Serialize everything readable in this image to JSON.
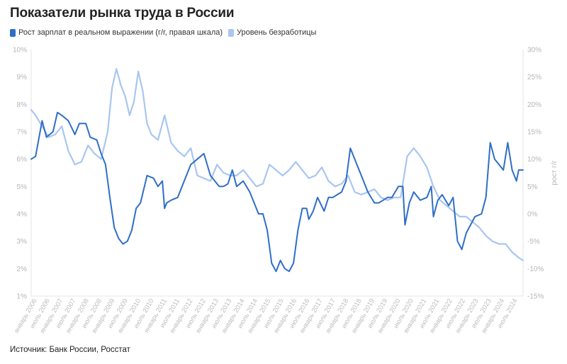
{
  "title": "Показатели рынка труда в России",
  "source": "Источник: Банк России, Росстат",
  "colors": {
    "wages": "#2f6ec7",
    "unemployment": "#a9c6f0",
    "grid": "#e3e3e3",
    "tick": "#b5b5b5"
  },
  "chart_data": {
    "type": "line",
    "title": "Показатели рынка труда в России",
    "ylim_left": [
      1,
      10
    ],
    "ylim_right": [
      -15,
      30
    ],
    "ylabel_left": "",
    "ylabel_right": "рост г/г",
    "left_ticks": [
      "1%",
      "2%",
      "3%",
      "4%",
      "5%",
      "6%",
      "7%",
      "8%",
      "9%",
      "10%"
    ],
    "right_ticks": [
      "-15%",
      "-10%",
      "-5%",
      "0%",
      "5%",
      "10%",
      "15%",
      "20%",
      "25%",
      "30%"
    ],
    "grid": false,
    "legend_position": "top-left",
    "x_range": [
      "2006-01",
      "2024-10"
    ],
    "x_tick_labels": [
      "январь 2006",
      "июль 2006",
      "январь 2007",
      "июль 2007",
      "январь 2008",
      "июль 2008",
      "январь 2009",
      "июль 2009",
      "январь 2010",
      "июль 2010",
      "январь 2011",
      "июль 2011",
      "январь 2012",
      "июль 2012",
      "январь 2013",
      "июль 2013",
      "январь 2014",
      "июль 2014",
      "январь 2015",
      "июль 2015",
      "январь 2016",
      "июль 2016",
      "январь 2017",
      "июль 2017",
      "январь 2018",
      "июль 2018",
      "январь 2019",
      "июль 2019",
      "январь 2020",
      "июль 2020",
      "январь 2021",
      "июль 2021",
      "январь 2022",
      "июль 2022",
      "январь 2023",
      "июль 2023",
      "январь 2024",
      "июль 2024"
    ],
    "series": [
      {
        "name": "Рост зарплат в реальном выражении (г/г, правая шкала)",
        "axis": "right",
        "color": "#2f6ec7",
        "points": [
          [
            "2006-01",
            10
          ],
          [
            "2006-03",
            10.5
          ],
          [
            "2006-06",
            17
          ],
          [
            "2006-08",
            14
          ],
          [
            "2006-11",
            15
          ],
          [
            "2007-01",
            18.5
          ],
          [
            "2007-03",
            18
          ],
          [
            "2007-06",
            17
          ],
          [
            "2007-09",
            14.5
          ],
          [
            "2007-11",
            16.5
          ],
          [
            "2008-02",
            16.5
          ],
          [
            "2008-04",
            14
          ],
          [
            "2008-07",
            13.5
          ],
          [
            "2008-09",
            11
          ],
          [
            "2008-11",
            9
          ],
          [
            "2009-01",
            3
          ],
          [
            "2009-03",
            -2.5
          ],
          [
            "2009-05",
            -4.5
          ],
          [
            "2009-07",
            -5.5
          ],
          [
            "2009-09",
            -5
          ],
          [
            "2009-11",
            -3
          ],
          [
            "2010-01",
            1
          ],
          [
            "2010-03",
            2
          ],
          [
            "2010-06",
            7
          ],
          [
            "2010-09",
            6.5
          ],
          [
            "2010-11",
            5
          ],
          [
            "2011-01",
            6
          ],
          [
            "2011-02",
            1
          ],
          [
            "2011-03",
            2
          ],
          [
            "2011-05",
            2.5
          ],
          [
            "2011-08",
            3
          ],
          [
            "2011-11",
            6
          ],
          [
            "2012-02",
            9
          ],
          [
            "2012-05",
            10
          ],
          [
            "2012-08",
            11
          ],
          [
            "2012-11",
            7
          ],
          [
            "2013-01",
            6
          ],
          [
            "2013-03",
            5
          ],
          [
            "2013-05",
            5
          ],
          [
            "2013-07",
            5.5
          ],
          [
            "2013-09",
            8
          ],
          [
            "2013-11",
            5
          ],
          [
            "2014-02",
            6
          ],
          [
            "2014-05",
            4
          ],
          [
            "2014-07",
            2
          ],
          [
            "2014-09",
            0
          ],
          [
            "2014-11",
            0
          ],
          [
            "2015-01",
            -3
          ],
          [
            "2015-03",
            -9
          ],
          [
            "2015-05",
            -10.5
          ],
          [
            "2015-07",
            -8.5
          ],
          [
            "2015-09",
            -10
          ],
          [
            "2015-11",
            -10.5
          ],
          [
            "2016-01",
            -9
          ],
          [
            "2016-03",
            -3
          ],
          [
            "2016-05",
            1
          ],
          [
            "2016-07",
            1
          ],
          [
            "2016-08",
            -1
          ],
          [
            "2016-10",
            0.5
          ],
          [
            "2016-12",
            3
          ],
          [
            "2017-03",
            0.5
          ],
          [
            "2017-05",
            3
          ],
          [
            "2017-07",
            3
          ],
          [
            "2017-09",
            3.5
          ],
          [
            "2017-11",
            4
          ],
          [
            "2018-01",
            6
          ],
          [
            "2018-03",
            12
          ],
          [
            "2018-05",
            10
          ],
          [
            "2018-08",
            7
          ],
          [
            "2018-11",
            4
          ],
          [
            "2019-02",
            2
          ],
          [
            "2019-04",
            2
          ],
          [
            "2019-06",
            2.5
          ],
          [
            "2019-08",
            3
          ],
          [
            "2019-10",
            3
          ],
          [
            "2020-01",
            5
          ],
          [
            "2020-03",
            5
          ],
          [
            "2020-04",
            -2
          ],
          [
            "2020-06",
            2
          ],
          [
            "2020-08",
            4
          ],
          [
            "2020-11",
            2.5
          ],
          [
            "2021-02",
            3
          ],
          [
            "2021-04",
            5
          ],
          [
            "2021-05",
            -0.5
          ],
          [
            "2021-07",
            2.5
          ],
          [
            "2021-09",
            3.5
          ],
          [
            "2021-12",
            1.5
          ],
          [
            "2022-02",
            3
          ],
          [
            "2022-04",
            -5
          ],
          [
            "2022-06",
            -6.5
          ],
          [
            "2022-08",
            -3.5
          ],
          [
            "2022-10",
            -2
          ],
          [
            "2022-12",
            -0.5
          ],
          [
            "2023-03",
            0
          ],
          [
            "2023-05",
            3
          ],
          [
            "2023-07",
            13
          ],
          [
            "2023-09",
            10
          ],
          [
            "2023-11",
            9
          ],
          [
            "2024-01",
            8
          ],
          [
            "2024-03",
            13
          ],
          [
            "2024-05",
            8
          ],
          [
            "2024-07",
            6
          ],
          [
            "2024-08",
            8
          ],
          [
            "2024-10",
            8
          ]
        ]
      },
      {
        "name": "Уровень безработицы",
        "axis": "left",
        "color": "#a9c6f0",
        "points": [
          [
            "2006-01",
            7.8
          ],
          [
            "2006-03",
            7.6
          ],
          [
            "2006-06",
            7.2
          ],
          [
            "2006-09",
            6.8
          ],
          [
            "2006-12",
            6.9
          ],
          [
            "2007-03",
            7.2
          ],
          [
            "2007-06",
            6.3
          ],
          [
            "2007-09",
            5.8
          ],
          [
            "2007-12",
            5.9
          ],
          [
            "2008-03",
            6.5
          ],
          [
            "2008-06",
            6.2
          ],
          [
            "2008-09",
            6.0
          ],
          [
            "2008-12",
            7.0
          ],
          [
            "2009-02",
            8.6
          ],
          [
            "2009-04",
            9.3
          ],
          [
            "2009-06",
            8.7
          ],
          [
            "2009-08",
            8.3
          ],
          [
            "2009-10",
            7.6
          ],
          [
            "2009-12",
            8.1
          ],
          [
            "2010-02",
            9.2
          ],
          [
            "2010-04",
            8.5
          ],
          [
            "2010-06",
            7.3
          ],
          [
            "2010-08",
            6.9
          ],
          [
            "2010-11",
            6.7
          ],
          [
            "2011-02",
            7.6
          ],
          [
            "2011-05",
            6.6
          ],
          [
            "2011-08",
            6.3
          ],
          [
            "2011-11",
            6.1
          ],
          [
            "2012-02",
            6.4
          ],
          [
            "2012-05",
            5.4
          ],
          [
            "2012-08",
            5.3
          ],
          [
            "2012-11",
            5.2
          ],
          [
            "2013-02",
            5.8
          ],
          [
            "2013-05",
            5.5
          ],
          [
            "2013-08",
            5.4
          ],
          [
            "2013-11",
            5.4
          ],
          [
            "2014-02",
            5.6
          ],
          [
            "2014-05",
            5.3
          ],
          [
            "2014-08",
            5.0
          ],
          [
            "2014-11",
            5.1
          ],
          [
            "2015-02",
            5.8
          ],
          [
            "2015-05",
            5.6
          ],
          [
            "2015-08",
            5.4
          ],
          [
            "2015-11",
            5.6
          ],
          [
            "2016-02",
            5.9
          ],
          [
            "2016-05",
            5.6
          ],
          [
            "2016-08",
            5.3
          ],
          [
            "2016-11",
            5.4
          ],
          [
            "2017-02",
            5.7
          ],
          [
            "2017-05",
            5.2
          ],
          [
            "2017-08",
            5.0
          ],
          [
            "2017-11",
            5.1
          ],
          [
            "2018-02",
            5.4
          ],
          [
            "2018-05",
            4.8
          ],
          [
            "2018-08",
            4.7
          ],
          [
            "2018-11",
            4.8
          ],
          [
            "2019-02",
            4.9
          ],
          [
            "2019-05",
            4.6
          ],
          [
            "2019-08",
            4.5
          ],
          [
            "2019-11",
            4.6
          ],
          [
            "2020-02",
            4.6
          ],
          [
            "2020-05",
            6.1
          ],
          [
            "2020-08",
            6.4
          ],
          [
            "2020-11",
            6.1
          ],
          [
            "2021-02",
            5.7
          ],
          [
            "2021-05",
            5.0
          ],
          [
            "2021-08",
            4.5
          ],
          [
            "2021-11",
            4.3
          ],
          [
            "2022-02",
            4.1
          ],
          [
            "2022-05",
            3.9
          ],
          [
            "2022-08",
            3.9
          ],
          [
            "2022-11",
            3.7
          ],
          [
            "2023-02",
            3.5
          ],
          [
            "2023-05",
            3.2
          ],
          [
            "2023-08",
            3.0
          ],
          [
            "2023-11",
            2.9
          ],
          [
            "2024-02",
            2.9
          ],
          [
            "2024-05",
            2.6
          ],
          [
            "2024-08",
            2.4
          ],
          [
            "2024-10",
            2.3
          ]
        ]
      }
    ]
  }
}
